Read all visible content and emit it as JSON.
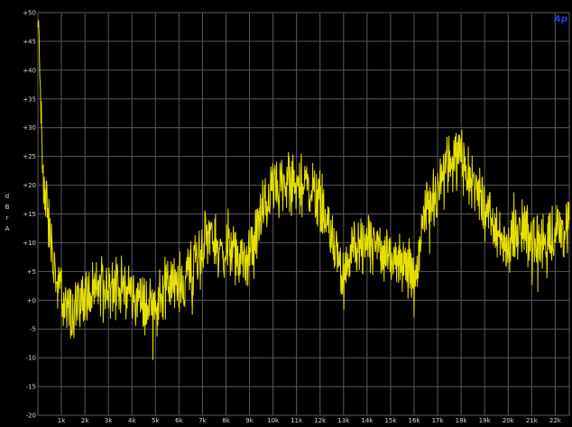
{
  "chart_data": {
    "type": "line",
    "logo_text": "Ap",
    "ylabel": "d B r A",
    "ylabel_chars": [
      "d",
      "B",
      "r",
      "A"
    ],
    "ylim": [
      -20,
      50
    ],
    "xlim": [
      0,
      22.6
    ],
    "grid": true,
    "background": "#000000",
    "grid_color": "#5a5a5a",
    "line_color": "#e6e000",
    "logo_color": "#2a3cff",
    "y_ticks": [
      50,
      45,
      40,
      35,
      30,
      25,
      20,
      15,
      10,
      5,
      0,
      -5,
      -10,
      -15,
      -20
    ],
    "y_tick_labels": [
      "+50",
      "+45",
      "+40",
      "+35",
      "+30",
      "+25",
      "+20",
      "+15",
      "+10",
      "+5",
      "+0",
      "-5",
      "-10",
      "-15",
      "-20"
    ],
    "x_ticks": [
      1,
      2,
      3,
      4,
      5,
      6,
      7,
      8,
      9,
      10,
      11,
      12,
      13,
      14,
      15,
      16,
      17,
      18,
      19,
      20,
      21,
      22
    ],
    "x_tick_labels": [
      "1k",
      "2k",
      "3k",
      "4k",
      "5k",
      "6k",
      "7k",
      "8k",
      "9k",
      "10k",
      "11k",
      "12k",
      "13k",
      "14k",
      "15k",
      "16k",
      "17k",
      "18k",
      "19k",
      "20k",
      "21k",
      "22k"
    ],
    "series": [
      {
        "x_unit": "kHz",
        "envelope_x": [
          0.0,
          0.05,
          0.1,
          0.15,
          0.2,
          0.3,
          0.4,
          0.5,
          0.6,
          0.8,
          1.0,
          1.2,
          1.5,
          1.8,
          2.0,
          2.3,
          2.6,
          3.0,
          3.3,
          3.6,
          4.0,
          4.3,
          4.6,
          5.0,
          5.3,
          5.6,
          6.0,
          6.3,
          6.6,
          7.0,
          7.3,
          7.6,
          8.0,
          8.3,
          8.6,
          8.9,
          9.0,
          9.3,
          9.6,
          10.0,
          10.3,
          10.6,
          11.0,
          11.3,
          11.6,
          12.0,
          12.3,
          12.6,
          12.8,
          13.0,
          13.2,
          13.5,
          14.0,
          14.5,
          15.0,
          15.5,
          15.9,
          16.0,
          16.2,
          16.5,
          17.0,
          17.3,
          17.6,
          18.0,
          18.3,
          18.5,
          18.8,
          19.0,
          19.3,
          19.6,
          20.0,
          20.3,
          20.6,
          21.0,
          21.3,
          21.6,
          22.0,
          22.3,
          22.6
        ],
        "envelope_y": [
          47,
          45,
          40,
          30,
          22,
          19,
          16,
          12,
          8,
          3,
          1,
          -1,
          -2,
          0,
          1,
          1,
          2,
          2,
          3,
          2,
          1,
          0,
          -1,
          0,
          1,
          3,
          3,
          4,
          6,
          10,
          12,
          9,
          8,
          8,
          7,
          6,
          7,
          12,
          16,
          20,
          19,
          20,
          20,
          21,
          20,
          17,
          14,
          10,
          6,
          3,
          7,
          10,
          9,
          9,
          8,
          7,
          5,
          2,
          8,
          17,
          19,
          23,
          24,
          25,
          23,
          20,
          18,
          16,
          13,
          11,
          10,
          12,
          12,
          11,
          10,
          11,
          12,
          12,
          12
        ],
        "noise_amplitude_db": 4
      }
    ]
  }
}
